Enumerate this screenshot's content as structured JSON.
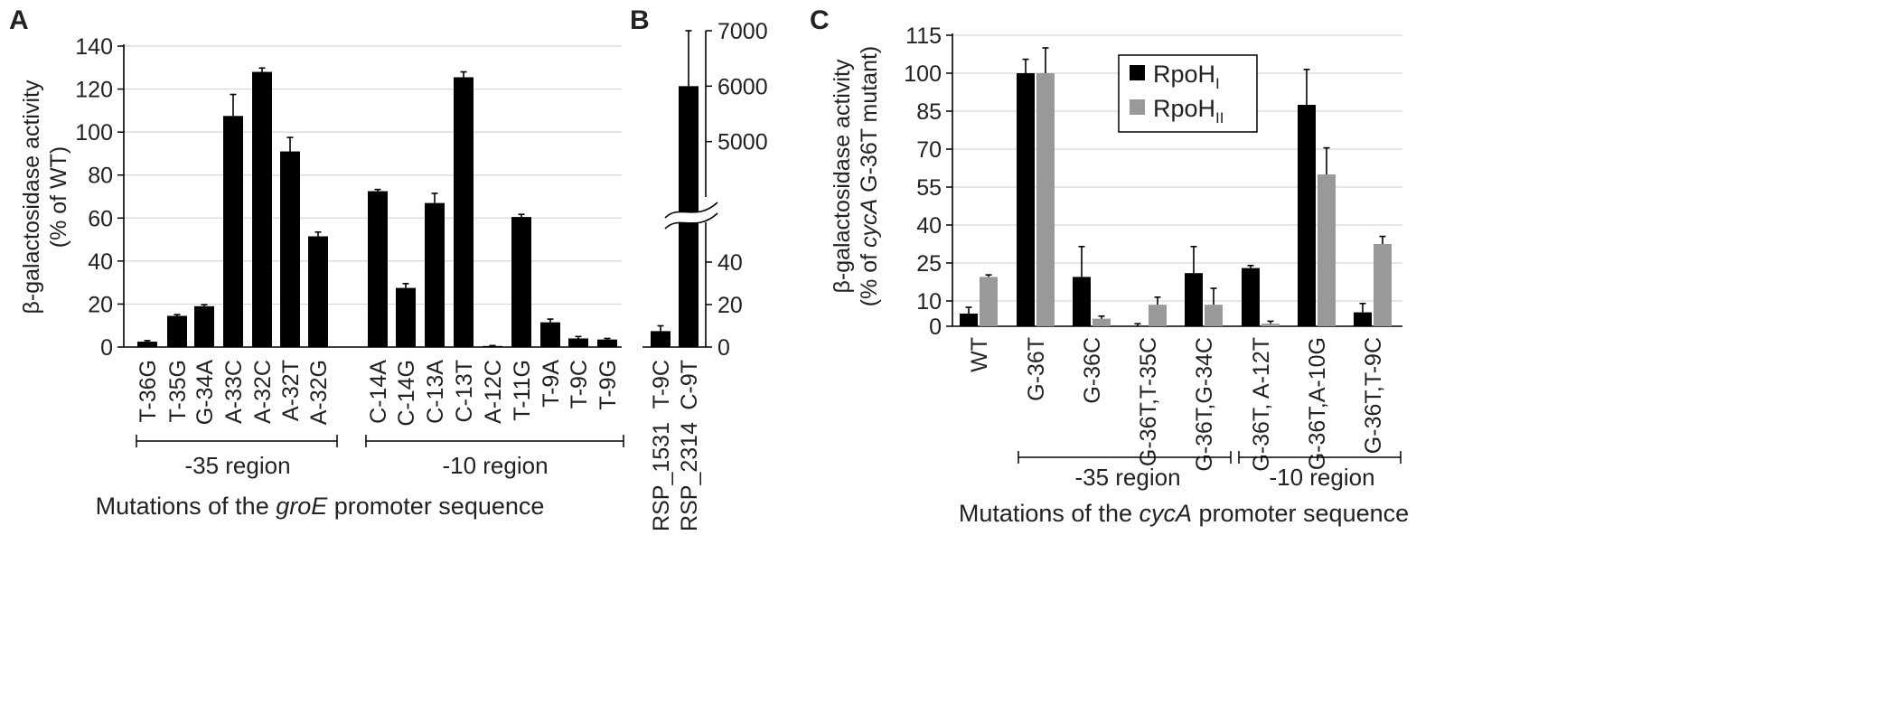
{
  "chart_data": [
    {
      "type": "bar",
      "panel": "A",
      "ylabel_line1": "β-galactosidase activity",
      "ylabel_line2": "(% of WT)",
      "ylim": [
        0,
        140
      ],
      "yticks": [
        0,
        20,
        40,
        60,
        80,
        100,
        120,
        140
      ],
      "grid": true,
      "categories": [
        "T-36G",
        "T-35G",
        "G-34A",
        "A-33C",
        "A-32C",
        "A-32T",
        "A-32G",
        "C-14A",
        "C-14G",
        "C-13A",
        "C-13T",
        "A-12C",
        "T-11G",
        "T-9A",
        "T-9C",
        "T-9G"
      ],
      "values": [
        2.5,
        14.5,
        19,
        107.5,
        128,
        91,
        51.5,
        72.5,
        27.5,
        67,
        125.5,
        0.5,
        60.5,
        11.5,
        4,
        3.5
      ],
      "errors": [
        0.5,
        0.6,
        0.7,
        10,
        1.8,
        6.5,
        2,
        0.8,
        2,
        4.5,
        2.5,
        0.2,
        1.2,
        1.5,
        0.9,
        0.5
      ],
      "regions": [
        {
          "label": "-35 region"
        },
        {
          "label": "-10 region"
        }
      ],
      "footer": {
        "pre": "Mutations of the ",
        "italic": "groE",
        "post": " promoter sequence"
      }
    },
    {
      "type": "bar",
      "panel": "B",
      "broken_axis": true,
      "yticks_lower": [
        0,
        20,
        40
      ],
      "yticks_upper": [
        5000,
        6000,
        7000
      ],
      "categories": [
        "T-9C",
        "C-9T"
      ],
      "values": [
        7.5,
        6000
      ],
      "errors": [
        2.5,
        1000
      ],
      "sublabels": [
        "RSP_1531",
        "RSP_2314"
      ]
    },
    {
      "type": "bar",
      "panel": "C",
      "ylabel_line1": "β-galactosidase activity",
      "ylabel_line2_pre": "(% of ",
      "ylabel_line2_italic": "cycA",
      "ylabel_line2_post": " G-36T mutant)",
      "ylim": [
        0,
        115
      ],
      "yticks": [
        0,
        10,
        25,
        40,
        55,
        70,
        85,
        100,
        115
      ],
      "grid": true,
      "categories": [
        "WT",
        "G-36T",
        "G-36C",
        "G-36T,T-35C",
        "G-36T,G-34C",
        "G-36T, A-12T",
        "G-36T,A-10G",
        "G-36T,T-9C"
      ],
      "series": [
        {
          "name": "RpoH",
          "subscript": "I",
          "color": "#000000",
          "values": [
            5,
            100,
            19.5,
            0,
            21,
            23,
            87.5,
            5.5
          ],
          "errors": [
            2.5,
            5.5,
            12,
            1,
            10.5,
            1,
            14,
            3.5
          ]
        },
        {
          "name": "RpoH",
          "subscript": "II",
          "color": "#999999",
          "values": [
            19.5,
            100,
            3,
            8.5,
            8.5,
            1,
            60,
            32.5
          ],
          "errors": [
            0.8,
            10,
            1,
            3,
            6.5,
            1,
            10.5,
            3
          ]
        }
      ],
      "legend": "top-center",
      "regions": [
        {
          "label": "-35 region"
        },
        {
          "label": "-10 region"
        }
      ],
      "footer": {
        "pre": "Mutations of the ",
        "italic": "cycA",
        "post": " promoter sequence"
      }
    }
  ]
}
